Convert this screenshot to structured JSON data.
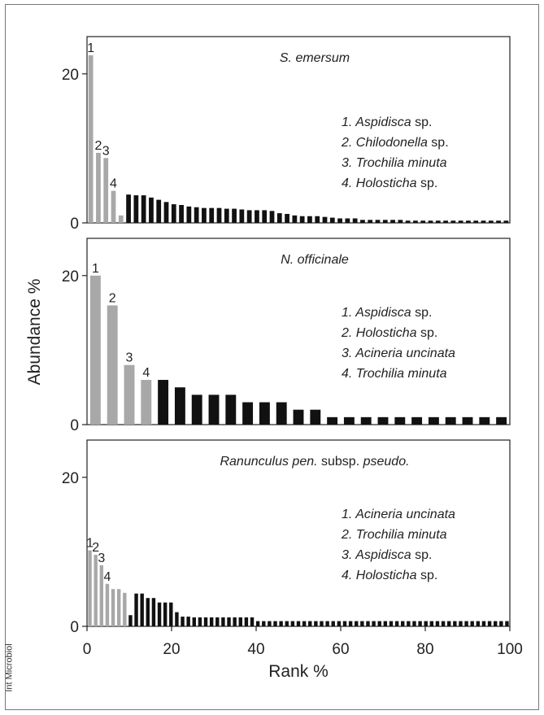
{
  "watermark": "Int Microbiol",
  "chart_data": {
    "type": "bar",
    "ylabel": "Abundance %",
    "xlabel": "Rank %",
    "xlim": [
      0,
      100
    ],
    "ylim": [
      0,
      25
    ],
    "xticks": [
      0,
      20,
      40,
      60,
      80,
      100
    ],
    "yticks": [
      0,
      20
    ],
    "colors": {
      "highlight": "#a8a8a8",
      "rest": "#111111"
    },
    "panels": [
      {
        "title": "S. emersum",
        "legend": [
          "1. Aspidisca sp.",
          "2. Chilodonella sp.",
          "3. Trochilia minuta",
          "4. Holosticha sp."
        ],
        "labeled_ranks": [
          "1",
          "2",
          "3",
          "4"
        ],
        "highlight_count": 5,
        "values": [
          22.5,
          9.4,
          8.7,
          4.3,
          1.0,
          3.8,
          3.7,
          3.7,
          3.4,
          3.1,
          2.8,
          2.5,
          2.4,
          2.2,
          2.1,
          2.0,
          2.0,
          2.0,
          1.9,
          1.9,
          1.8,
          1.7,
          1.7,
          1.7,
          1.6,
          1.3,
          1.2,
          1.0,
          0.9,
          0.9,
          0.9,
          0.8,
          0.7,
          0.6,
          0.6,
          0.6,
          0.4,
          0.4,
          0.4,
          0.4,
          0.4,
          0.4,
          0.3,
          0.3,
          0.3,
          0.3,
          0.3,
          0.3,
          0.3,
          0.3,
          0.3,
          0.3,
          0.3,
          0.3,
          0.3,
          0.3
        ]
      },
      {
        "title": "N. officinale",
        "legend": [
          "1. Aspidisca sp.",
          "2. Holosticha sp.",
          "3. Acineria uncinata",
          "4. Trochilia minuta"
        ],
        "labeled_ranks": [
          "1",
          "2",
          "3",
          "4"
        ],
        "highlight_count": 4,
        "values": [
          20,
          16,
          8,
          6,
          6,
          5,
          4,
          4,
          4,
          3,
          3,
          3,
          2,
          2,
          1,
          1,
          1,
          1,
          1,
          1,
          1,
          1,
          1,
          1,
          1
        ]
      },
      {
        "title_parts": [
          {
            "text": "Ranunculus pen.",
            "italic": true
          },
          {
            "text": " subsp. ",
            "italic": false
          },
          {
            "text": "pseudo.",
            "italic": true
          }
        ],
        "legend": [
          "1. Acineria uncinata",
          "2. Trochilia minuta",
          "3. Aspidisca sp.",
          "4. Holosticha sp."
        ],
        "labeled_ranks": [
          "1",
          "2",
          "3",
          "4"
        ],
        "highlight_count": 7,
        "values": [
          10.2,
          9.6,
          8.2,
          5.7,
          5.0,
          5.0,
          4.5,
          1.5,
          4.4,
          4.4,
          3.8,
          3.8,
          3.2,
          3.2,
          3.2,
          1.9,
          1.3,
          1.3,
          1.2,
          1.2,
          1.2,
          1.2,
          1.2,
          1.2,
          1.2,
          1.2,
          1.2,
          1.2,
          1.2,
          0.7,
          0.7,
          0.7,
          0.7,
          0.7,
          0.7,
          0.7,
          0.7,
          0.7,
          0.7,
          0.7,
          0.7,
          0.7,
          0.7,
          0.7,
          0.7,
          0.7,
          0.7,
          0.7,
          0.7,
          0.7,
          0.7,
          0.7,
          0.7,
          0.7,
          0.7,
          0.7,
          0.7,
          0.7,
          0.7,
          0.7,
          0.7,
          0.7,
          0.7,
          0.7,
          0.7,
          0.7,
          0.7,
          0.7,
          0.7,
          0.7,
          0.7,
          0.7,
          0.7
        ]
      }
    ]
  }
}
